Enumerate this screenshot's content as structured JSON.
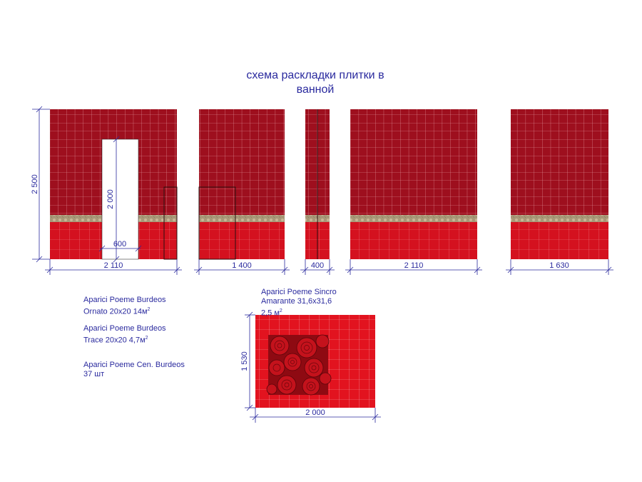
{
  "title": {
    "line1": "схема раскладки плитки в",
    "line2": "ванной"
  },
  "walls": [
    {
      "id": "wall-1",
      "width_label": "2 110",
      "height_label": "2 500",
      "door_height_label": "2 000",
      "door_width_label": "600"
    },
    {
      "id": "wall-2",
      "width_label": "1 400"
    },
    {
      "id": "wall-3",
      "width_label": "400"
    },
    {
      "id": "wall-4",
      "width_label": "2 110"
    },
    {
      "id": "wall-5",
      "width_label": "1 630"
    }
  ],
  "floor": {
    "width_label": "2 000",
    "height_label": "1 530"
  },
  "materials": [
    {
      "line1": "Aparici Poeme Burdeos",
      "line2": "Ornato 20x20  14м",
      "sup": "2"
    },
    {
      "line1": "Aparici Poeme Burdeos",
      "line2": "Trace 20x20  4,7м",
      "sup": "2"
    },
    {
      "line1": "Aparici Poeme Cen. Burdeos",
      "line2": "37 шт",
      "sup": ""
    }
  ],
  "floor_material": {
    "line1": "Aparici Poeme Sincro",
    "line2": "Amarante 31,6x31,6",
    "line3": "2,5 м",
    "sup": "2"
  },
  "colors": {
    "upper_tile": "#9e0f1e",
    "lower_tile": "#d4111f",
    "border_band": "#a09070",
    "grout": "#e8a0a6",
    "dimension": "#2a2a9e",
    "floor_tile": "#e2131f",
    "rose": "#b80d18"
  }
}
